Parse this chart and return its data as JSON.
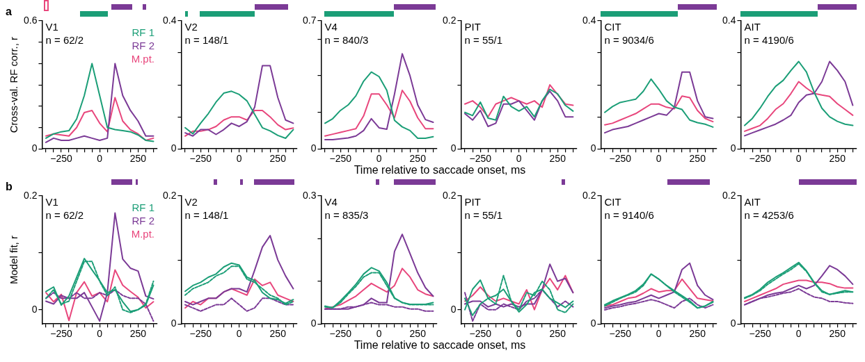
{
  "chart_data": [
    {
      "type": "line",
      "title": "V1",
      "subtitle": "n = 62/2",
      "ylabel": "Cross-val. RF corr., r",
      "annotations": [
        "a"
      ],
      "legend": "top right",
      "xlim": [
        -375,
        375
      ],
      "xticks": [
        {
          "value": -350,
          "label": null
        },
        {
          "value": -300,
          "label": null
        },
        -250,
        {
          "value": -200,
          "label": null
        },
        {
          "value": -150,
          "label": null
        },
        {
          "value": -100,
          "label": null
        },
        {
          "value": -50,
          "label": null
        },
        0,
        {
          "value": 50,
          "label": null
        },
        {
          "value": 100,
          "label": null
        },
        {
          "value": 150,
          "label": null
        },
        {
          "value": 200,
          "label": null
        },
        250,
        {
          "value": 300,
          "label": null
        },
        {
          "value": 350,
          "label": null
        }
      ],
      "ylim": [
        0,
        0.6
      ],
      "yticks": [
        0,
        {
          "value": 0.1,
          "label": null
        },
        {
          "value": 0.2,
          "label": null
        },
        {
          "value": 0.3,
          "label": null
        },
        {
          "value": 0.4,
          "label": null
        },
        {
          "value": 0.5,
          "label": null
        },
        0.6
      ],
      "x": [
        -350,
        -300,
        -250,
        -200,
        -150,
        -100,
        -50,
        0,
        50,
        100,
        150,
        200,
        250,
        300,
        350
      ],
      "series": [
        {
          "name": "RF 1",
          "color": "#1b9e77",
          "values": [
            0.05,
            0.07,
            0.08,
            0.085,
            0.14,
            0.25,
            0.4,
            0.25,
            0.1,
            0.09,
            0.085,
            0.08,
            0.065,
            0.04,
            0.035
          ]
        },
        {
          "name": "RF 2",
          "color": "#7b3a96",
          "values": [
            0.03,
            0.05,
            0.04,
            0.04,
            0.05,
            0.06,
            0.05,
            0.04,
            0.05,
            0.4,
            0.25,
            0.18,
            0.13,
            0.06,
            0.06
          ]
        },
        {
          "name": "M.pt.",
          "color": "#e8467c",
          "values": [
            0.06,
            0.07,
            0.065,
            0.06,
            0.1,
            0.17,
            0.18,
            0.12,
            0.08,
            0.24,
            0.13,
            0.09,
            0.07,
            0.04,
            0.05
          ]
        }
      ]
    },
    {
      "type": "line",
      "title": "V2",
      "subtitle": "n = 148/1",
      "xlim": [
        -375,
        375
      ],
      "xticks": [
        {
          "value": -350,
          "label": null
        },
        {
          "value": -300,
          "label": null
        },
        -250,
        {
          "value": -200,
          "label": null
        },
        {
          "value": -150,
          "label": null
        },
        {
          "value": -100,
          "label": null
        },
        {
          "value": -50,
          "label": null
        },
        0,
        {
          "value": 50,
          "label": null
        },
        {
          "value": 100,
          "label": null
        },
        {
          "value": 150,
          "label": null
        },
        {
          "value": 200,
          "label": null
        },
        250,
        {
          "value": 300,
          "label": null
        },
        {
          "value": 350,
          "label": null
        }
      ],
      "ylim": [
        0,
        0.4
      ],
      "yticks": [
        0,
        {
          "value": 0.1,
          "label": null
        },
        {
          "value": 0.2,
          "label": null
        },
        {
          "value": 0.3,
          "label": null
        },
        0.4
      ],
      "x": [
        -350,
        -300,
        -250,
        -200,
        -150,
        -100,
        -50,
        0,
        50,
        100,
        150,
        200,
        250,
        300,
        350
      ],
      "series": [
        {
          "color": "#1b9e77",
          "values": [
            0.066,
            0.047,
            0.08,
            0.11,
            0.146,
            0.174,
            0.18,
            0.17,
            0.15,
            0.108,
            0.066,
            0.056,
            0.042,
            0.033,
            0.06
          ]
        },
        {
          "color": "#7b3a96",
          "values": [
            0.05,
            0.04,
            0.06,
            0.06,
            0.045,
            0.06,
            0.08,
            0.07,
            0.085,
            0.13,
            0.26,
            0.26,
            0.16,
            0.09,
            0.08
          ]
        },
        {
          "color": "#e8467c",
          "values": [
            0.04,
            0.055,
            0.055,
            0.06,
            0.07,
            0.09,
            0.1,
            0.1,
            0.09,
            0.12,
            0.12,
            0.1,
            0.075,
            0.06,
            0.065
          ]
        }
      ]
    },
    {
      "type": "line",
      "title": "V4",
      "subtitle": "n = 840/3",
      "xlim": [
        -375,
        375
      ],
      "xticks": [
        {
          "value": -350,
          "label": null
        },
        {
          "value": -300,
          "label": null
        },
        -250,
        {
          "value": -200,
          "label": null
        },
        {
          "value": -150,
          "label": null
        },
        {
          "value": -100,
          "label": null
        },
        {
          "value": -50,
          "label": null
        },
        0,
        {
          "value": 50,
          "label": null
        },
        {
          "value": 100,
          "label": null
        },
        {
          "value": 150,
          "label": null
        },
        {
          "value": 200,
          "label": null
        },
        250,
        {
          "value": 300,
          "label": null
        },
        {
          "value": 350,
          "label": null
        }
      ],
      "ylim": [
        0,
        0.7
      ],
      "yticks": [
        0,
        {
          "value": 0.2,
          "label": null
        },
        {
          "value": 0.4,
          "label": null
        },
        {
          "value": 0.6,
          "label": null
        },
        0.7
      ],
      "x": [
        -350,
        -300,
        -250,
        -200,
        -150,
        -100,
        -50,
        0,
        50,
        100,
        150,
        200,
        250,
        300,
        350
      ],
      "series": [
        {
          "color": "#1b9e77",
          "values": [
            0.14,
            0.165,
            0.21,
            0.24,
            0.29,
            0.37,
            0.42,
            0.395,
            0.32,
            0.156,
            0.12,
            0.1,
            0.058,
            0.058,
            0.066
          ]
        },
        {
          "color": "#7b3a96",
          "values": [
            0.05,
            0.05,
            0.055,
            0.06,
            0.07,
            0.1,
            0.165,
            0.115,
            0.107,
            0.3,
            0.52,
            0.4,
            0.24,
            0.16,
            0.145
          ]
        },
        {
          "color": "#e8467c",
          "values": [
            0.07,
            0.08,
            0.09,
            0.1,
            0.11,
            0.18,
            0.3,
            0.3,
            0.24,
            0.17,
            0.32,
            0.26,
            0.17,
            0.11,
            0.11
          ]
        }
      ]
    },
    {
      "type": "line",
      "title": "PIT",
      "subtitle": "n = 55/1",
      "xlabel": "Time relative to saccade onset, ms",
      "xlim": [
        -375,
        375
      ],
      "xticks": [
        {
          "value": -350,
          "label": null
        },
        {
          "value": -300,
          "label": null
        },
        -250,
        {
          "value": -200,
          "label": null
        },
        {
          "value": -150,
          "label": null
        },
        {
          "value": -100,
          "label": null
        },
        {
          "value": -50,
          "label": null
        },
        0,
        {
          "value": 50,
          "label": null
        },
        {
          "value": 100,
          "label": null
        },
        {
          "value": 150,
          "label": null
        },
        {
          "value": 200,
          "label": null
        },
        250,
        {
          "value": 300,
          "label": null
        },
        {
          "value": 350,
          "label": null
        }
      ],
      "ylim": [
        0,
        0.2
      ],
      "yticks": [
        0,
        {
          "value": 0.1,
          "label": null
        },
        0.2
      ],
      "x": [
        -350,
        -300,
        -250,
        -200,
        -150,
        -100,
        -50,
        0,
        50,
        100,
        150,
        200,
        250,
        300,
        350
      ],
      "series": [
        {
          "color": "#1b9e77",
          "values": [
            0.057,
            0.052,
            0.073,
            0.048,
            0.045,
            0.082,
            0.066,
            0.059,
            0.066,
            0.05,
            0.075,
            0.093,
            0.086,
            0.068,
            0.059
          ]
        },
        {
          "color": "#7b3a96",
          "values": [
            0.055,
            0.045,
            0.06,
            0.035,
            0.04,
            0.07,
            0.07,
            0.075,
            0.06,
            0.045,
            0.075,
            0.09,
            0.075,
            0.05,
            0.05
          ]
        },
        {
          "color": "#e8467c",
          "values": [
            0.07,
            0.075,
            0.065,
            0.05,
            0.07,
            0.075,
            0.08,
            0.075,
            0.07,
            0.075,
            0.065,
            0.1,
            0.085,
            0.07,
            0.068
          ]
        }
      ]
    },
    {
      "type": "line",
      "title": "CIT",
      "subtitle": "n = 9034/6",
      "xlim": [
        -375,
        375
      ],
      "xticks": [
        {
          "value": -350,
          "label": null
        },
        {
          "value": -300,
          "label": null
        },
        -250,
        {
          "value": -200,
          "label": null
        },
        {
          "value": -150,
          "label": null
        },
        {
          "value": -100,
          "label": null
        },
        {
          "value": -50,
          "label": null
        },
        0,
        {
          "value": 50,
          "label": null
        },
        {
          "value": 100,
          "label": null
        },
        {
          "value": 150,
          "label": null
        },
        {
          "value": 200,
          "label": null
        },
        250,
        {
          "value": 300,
          "label": null
        },
        {
          "value": 350,
          "label": null
        }
      ],
      "ylim": [
        0,
        0.4
      ],
      "yticks": [
        0,
        {
          "value": 0.1,
          "label": null
        },
        {
          "value": 0.2,
          "label": null
        },
        {
          "value": 0.3,
          "label": null
        },
        0.4
      ],
      "x": [
        -350,
        -300,
        -250,
        -200,
        -150,
        -100,
        -50,
        0,
        50,
        100,
        150,
        200,
        250,
        300,
        350
      ],
      "series": [
        {
          "color": "#1b9e77",
          "values": [
            0.114,
            0.132,
            0.145,
            0.15,
            0.155,
            0.18,
            0.218,
            0.186,
            0.15,
            0.13,
            0.123,
            0.09,
            0.082,
            0.077,
            0.068
          ]
        },
        {
          "color": "#7b3a96",
          "values": [
            0.05,
            0.06,
            0.065,
            0.07,
            0.08,
            0.09,
            0.1,
            0.11,
            0.105,
            0.13,
            0.24,
            0.24,
            0.15,
            0.1,
            0.095
          ]
        },
        {
          "color": "#e8467c",
          "values": [
            0.075,
            0.08,
            0.09,
            0.1,
            0.11,
            0.125,
            0.14,
            0.14,
            0.13,
            0.125,
            0.165,
            0.16,
            0.12,
            0.095,
            0.085
          ]
        }
      ]
    },
    {
      "type": "line",
      "title": "AIT",
      "subtitle": "n = 4190/6",
      "xlim": [
        -375,
        375
      ],
      "xticks": [
        {
          "value": -350,
          "label": null
        },
        {
          "value": -300,
          "label": null
        },
        -250,
        {
          "value": -200,
          "label": null
        },
        {
          "value": -150,
          "label": null
        },
        {
          "value": -100,
          "label": null
        },
        {
          "value": -50,
          "label": null
        },
        0,
        {
          "value": 50,
          "label": null
        },
        {
          "value": 100,
          "label": null
        },
        {
          "value": 150,
          "label": null
        },
        {
          "value": 200,
          "label": null
        },
        250,
        {
          "value": 300,
          "label": null
        },
        {
          "value": 350,
          "label": null
        }
      ],
      "ylim": [
        0,
        0.4
      ],
      "yticks": [
        0,
        {
          "value": 0.1,
          "label": null
        },
        {
          "value": 0.2,
          "label": null
        },
        {
          "value": 0.3,
          "label": null
        },
        0.4
      ],
      "x": [
        -350,
        -300,
        -250,
        -200,
        -150,
        -100,
        -50,
        0,
        50,
        100,
        150,
        200,
        250,
        300,
        350
      ],
      "series": [
        {
          "color": "#1b9e77",
          "values": [
            0.073,
            0.095,
            0.127,
            0.164,
            0.195,
            0.214,
            0.245,
            0.273,
            0.24,
            0.177,
            0.127,
            0.1,
            0.086,
            0.077,
            0.073
          ]
        },
        {
          "color": "#7b3a96",
          "values": [
            0.041,
            0.05,
            0.059,
            0.068,
            0.077,
            0.09,
            0.105,
            0.145,
            0.168,
            0.173,
            0.21,
            0.273,
            0.245,
            0.21,
            0.136
          ]
        },
        {
          "color": "#e8467c",
          "values": [
            0.055,
            0.064,
            0.073,
            0.095,
            0.123,
            0.141,
            0.173,
            0.21,
            0.19,
            0.173,
            0.168,
            0.164,
            0.141,
            0.123,
            0.105
          ]
        }
      ]
    },
    {
      "type": "line",
      "title": "V1",
      "subtitle": "n = 62/2",
      "ylabel": "Model fit, r",
      "annotations": [
        "b"
      ],
      "legend": "top right",
      "xlim": [
        -375,
        375
      ],
      "xticks": [
        {
          "value": -350,
          "label": null
        },
        {
          "value": -300,
          "label": null
        },
        -250,
        {
          "value": -200,
          "label": null
        },
        {
          "value": -150,
          "label": null
        },
        {
          "value": -100,
          "label": null
        },
        {
          "value": -50,
          "label": null
        },
        0,
        {
          "value": 50,
          "label": null
        },
        {
          "value": 100,
          "label": null
        },
        {
          "value": 150,
          "label": null
        },
        {
          "value": 200,
          "label": null
        },
        250,
        {
          "value": 300,
          "label": null
        },
        {
          "value": 350,
          "label": null
        }
      ],
      "ylim": [
        -0.025,
        0.2
      ],
      "yticks": [
        0,
        {
          "value": 0.1,
          "label": null
        },
        0.2
      ],
      "x": [
        -350,
        -300,
        -250,
        -200,
        -150,
        -100,
        -50,
        0,
        50,
        100,
        150,
        200,
        250,
        300,
        350
      ],
      "series": [
        {
          "name": "RF 1",
          "color": "#1b9e77",
          "values": [
            0.032,
            0.04,
            0.008,
            0.024,
            0.057,
            0.09,
            0.07,
            0.051,
            0.03,
            0.035,
            0.014,
            -0.003,
            0,
            0.008,
            0.043
          ]
        },
        {
          "color": "#1b9e77",
          "line_style": "dashed",
          "values": [
            0.02,
            0.035,
            0.01,
            0.015,
            0.05,
            0.085,
            0.085,
            0.05,
            0.025,
            0.04,
            0,
            -0.005,
            0,
            0.01,
            0.05
          ]
        },
        {
          "name": "RF 2",
          "color": "#7b3a96",
          "values": [
            0.015,
            0.01,
            0.025,
            0.02,
            0.02,
            0.03,
            0.005,
            -0.02,
            0.03,
            0.17,
            0.089,
            0.073,
            0.068,
            0.024,
            0.019
          ]
        },
        {
          "color": "#7b3a96",
          "line_style": "dashed",
          "values": [
            0.02,
            0.03,
            0.02,
            0.02,
            0.03,
            0.02,
            0.02,
            0.03,
            0.025,
            0.035,
            0.025,
            0.02,
            0.02,
            0.01,
            -0.02
          ]
        },
        {
          "name": "M.pt.",
          "color": "#e8467c",
          "values": [
            0.03,
            0.014,
            0.027,
            -0.019,
            0.03,
            0.049,
            0.024,
            0.03,
            0.014,
            0.07,
            0.043,
            0.032,
            0.022,
            0.003,
            0.014
          ]
        }
      ]
    },
    {
      "type": "line",
      "title": "V2",
      "subtitle": "n = 148/1",
      "xlim": [
        -375,
        375
      ],
      "xticks": [
        {
          "value": -350,
          "label": null
        },
        {
          "value": -300,
          "label": null
        },
        -250,
        {
          "value": -200,
          "label": null
        },
        {
          "value": -150,
          "label": null
        },
        {
          "value": -100,
          "label": null
        },
        {
          "value": -50,
          "label": null
        },
        0,
        {
          "value": 50,
          "label": null
        },
        {
          "value": 100,
          "label": null
        },
        {
          "value": 150,
          "label": null
        },
        {
          "value": 200,
          "label": null
        },
        250,
        {
          "value": 300,
          "label": null
        },
        {
          "value": 350,
          "label": null
        }
      ],
      "ylim": [
        0,
        0.2
      ],
      "yticks": [
        0,
        {
          "value": 0.1,
          "label": null
        },
        0.2
      ],
      "x": [
        -350,
        -300,
        -250,
        -200,
        -150,
        -100,
        -50,
        0,
        50,
        100,
        150,
        200,
        250,
        300,
        350
      ],
      "series": [
        {
          "color": "#1b9e77",
          "values": [
            0.051,
            0.06,
            0.065,
            0.073,
            0.078,
            0.089,
            0.095,
            0.092,
            0.073,
            0.068,
            0.049,
            0.04,
            0.038,
            0.032,
            0.038
          ]
        },
        {
          "color": "#1b9e77",
          "line_style": "dashed",
          "values": [
            0.045,
            0.055,
            0.06,
            0.065,
            0.075,
            0.08,
            0.09,
            0.09,
            0.07,
            0.065,
            0.055,
            0.045,
            0.04,
            0.03,
            0.035
          ]
        },
        {
          "color": "#7b3a96",
          "values": [
            0.035,
            0.03,
            0.035,
            0.04,
            0.04,
            0.05,
            0.055,
            0.055,
            0.05,
            0.084,
            0.12,
            0.138,
            0.1,
            0.075,
            0.055
          ]
        },
        {
          "color": "#7b3a96",
          "line_style": "dashed",
          "values": [
            0.03,
            0.025,
            0.02,
            0.025,
            0.03,
            0.03,
            0.04,
            0.03,
            0.02,
            0.025,
            0.04,
            0.04,
            0.035,
            0.03,
            0.03
          ]
        },
        {
          "color": "#e8467c",
          "values": [
            0.025,
            0.035,
            0.03,
            0.04,
            0.04,
            0.05,
            0.055,
            0.05,
            0.045,
            0.07,
            0.06,
            0.065,
            0.045,
            0.04,
            0.035
          ]
        }
      ]
    },
    {
      "type": "line",
      "title": "V4",
      "subtitle": "n = 835/3",
      "xlim": [
        -375,
        375
      ],
      "xticks": [
        {
          "value": -350,
          "label": null
        },
        {
          "value": -300,
          "label": null
        },
        -250,
        {
          "value": -200,
          "label": null
        },
        {
          "value": -150,
          "label": null
        },
        {
          "value": -100,
          "label": null
        },
        {
          "value": -50,
          "label": null
        },
        0,
        {
          "value": 50,
          "label": null
        },
        {
          "value": 100,
          "label": null
        },
        {
          "value": 150,
          "label": null
        },
        {
          "value": 200,
          "label": null
        },
        250,
        {
          "value": 300,
          "label": null
        },
        {
          "value": 350,
          "label": null
        }
      ],
      "ylim": [
        0,
        0.3
      ],
      "yticks": [
        0,
        {
          "value": 0.1,
          "label": null
        },
        {
          "value": 0.2,
          "label": null
        },
        0.3
      ],
      "x": [
        -350,
        -300,
        -250,
        -200,
        -150,
        -100,
        -50,
        0,
        50,
        100,
        150,
        200,
        250,
        300,
        350
      ],
      "series": [
        {
          "color": "#1b9e77",
          "values": [
            0.042,
            0.038,
            0.054,
            0.073,
            0.093,
            0.117,
            0.132,
            0.124,
            0.097,
            0.061,
            0.05,
            0.046,
            0.046,
            0.046,
            0.05
          ]
        },
        {
          "color": "#1b9e77",
          "line_style": "dashed",
          "values": [
            0.04,
            0.038,
            0.05,
            0.07,
            0.088,
            0.11,
            0.12,
            0.12,
            0.09,
            0.06,
            0.05,
            0.045,
            0.045,
            0.045,
            0.045
          ]
        },
        {
          "color": "#7b3a96",
          "values": [
            0.035,
            0.035,
            0.035,
            0.035,
            0.04,
            0.045,
            0.06,
            0.05,
            0.05,
            0.17,
            0.21,
            0.165,
            0.12,
            0.085,
            0.065
          ]
        },
        {
          "color": "#7b3a96",
          "line_style": "dashed",
          "values": [
            0.035,
            0.035,
            0.035,
            0.04,
            0.04,
            0.045,
            0.05,
            0.045,
            0.045,
            0.04,
            0.04,
            0.035,
            0.035,
            0.03,
            0.03
          ]
        },
        {
          "color": "#e8467c",
          "values": [
            0.035,
            0.04,
            0.045,
            0.055,
            0.065,
            0.08,
            0.095,
            0.085,
            0.075,
            0.09,
            0.13,
            0.11,
            0.08,
            0.07,
            0.065
          ]
        }
      ]
    },
    {
      "type": "line",
      "title": "PIT",
      "subtitle": "n = 55/1",
      "xlabel": "Time relative to saccade onset, ms",
      "xlim": [
        -375,
        375
      ],
      "xticks": [
        {
          "value": -350,
          "label": null
        },
        {
          "value": -300,
          "label": null
        },
        -250,
        {
          "value": -200,
          "label": null
        },
        {
          "value": -150,
          "label": null
        },
        {
          "value": -100,
          "label": null
        },
        {
          "value": -50,
          "label": null
        },
        0,
        {
          "value": 50,
          "label": null
        },
        {
          "value": 100,
          "label": null
        },
        {
          "value": 150,
          "label": null
        },
        {
          "value": 200,
          "label": null
        },
        250,
        {
          "value": 300,
          "label": null
        },
        {
          "value": 350,
          "label": null
        }
      ],
      "ylim": [
        -0.025,
        0.2
      ],
      "yticks": [
        0,
        {
          "value": 0.1,
          "label": null
        },
        0.2
      ],
      "x": [
        -350,
        -300,
        -250,
        -200,
        -150,
        -100,
        -50,
        0,
        50,
        100,
        150,
        200,
        250,
        300,
        350
      ],
      "series": [
        {
          "color": "#1b9e77",
          "values": [
            0,
            0.036,
            0.052,
            0.02,
            0.025,
            0.036,
            0.015,
            -0.004,
            0.009,
            0.03,
            0.036,
            0.02,
            0.012,
            0.004,
            0.015
          ]
        },
        {
          "color": "#1b9e77",
          "line_style": "dashed",
          "values": [
            0.02,
            -0.01,
            0.01,
            0.02,
            0.01,
            0.06,
            0.015,
            0,
            0.03,
            0.025,
            0.05,
            0.035,
            0,
            -0.005,
            0.01
          ]
        },
        {
          "color": "#7b3a96",
          "values": [
            0.01,
            0.015,
            0.015,
            0.005,
            0.01,
            0.005,
            0.01,
            0.005,
            0.01,
            0.01,
            0.035,
            0.08,
            0.05,
            0.055,
            0.03
          ]
        },
        {
          "color": "#7b3a96",
          "line_style": "dashed",
          "values": [
            0.03,
            -0.02,
            0.01,
            0,
            0,
            0.01,
            0.005,
            0,
            0.015,
            0.02,
            0.035,
            0.02,
            0.005,
            0.015,
            0.005
          ]
        },
        {
          "color": "#e8467c",
          "values": [
            0.015,
            0.025,
            0.04,
            0.025,
            0.015,
            0.02,
            0.015,
            0.01,
            0.035,
            0,
            0.035,
            0.055,
            0.035,
            0.06,
            0.03
          ]
        }
      ]
    },
    {
      "type": "line",
      "title": "CIT",
      "subtitle": "n = 9140/6",
      "xlim": [
        -375,
        375
      ],
      "xticks": [
        {
          "value": -350,
          "label": null
        },
        {
          "value": -300,
          "label": null
        },
        -250,
        {
          "value": -200,
          "label": null
        },
        {
          "value": -150,
          "label": null
        },
        {
          "value": -100,
          "label": null
        },
        {
          "value": -50,
          "label": null
        },
        0,
        {
          "value": 50,
          "label": null
        },
        {
          "value": 100,
          "label": null
        },
        {
          "value": 150,
          "label": null
        },
        {
          "value": 200,
          "label": null
        },
        250,
        {
          "value": 300,
          "label": null
        },
        {
          "value": 350,
          "label": null
        }
      ],
      "ylim": [
        0,
        0.2
      ],
      "yticks": [
        0,
        {
          "value": 0.1,
          "label": null
        },
        0.2
      ],
      "x": [
        -350,
        -300,
        -250,
        -200,
        -150,
        -100,
        -50,
        0,
        50,
        100,
        150,
        200,
        250,
        300,
        350
      ],
      "series": [
        {
          "color": "#1b9e77",
          "values": [
            0.03,
            0.036,
            0.041,
            0.046,
            0.052,
            0.062,
            0.078,
            0.07,
            0.06,
            0.052,
            0.044,
            0.036,
            0.025,
            0.028,
            0.035
          ]
        },
        {
          "color": "#1b9e77",
          "line_style": "dashed",
          "values": [
            0.028,
            0.034,
            0.04,
            0.045,
            0.05,
            0.06,
            0.078,
            0.07,
            0.06,
            0.05,
            0.042,
            0.034,
            0.025,
            0.028,
            0.034
          ]
        },
        {
          "color": "#7b3a96",
          "values": [
            0.025,
            0.028,
            0.03,
            0.033,
            0.035,
            0.04,
            0.045,
            0.04,
            0.045,
            0.05,
            0.085,
            0.095,
            0.06,
            0.045,
            0.038
          ]
        },
        {
          "color": "#7b3a96",
          "line_style": "dashed",
          "values": [
            0.022,
            0.025,
            0.027,
            0.03,
            0.032,
            0.035,
            0.038,
            0.035,
            0.03,
            0.025,
            0.035,
            0.04,
            0.03,
            0.025,
            0.03
          ]
        },
        {
          "color": "#e8467c",
          "values": [
            0.028,
            0.03,
            0.035,
            0.04,
            0.042,
            0.048,
            0.055,
            0.05,
            0.052,
            0.052,
            0.07,
            0.055,
            0.04,
            0.038,
            0.036
          ]
        }
      ]
    },
    {
      "type": "line",
      "title": "AIT",
      "subtitle": "n = 4253/6",
      "xlim": [
        -375,
        375
      ],
      "xticks": [
        {
          "value": -350,
          "label": null
        },
        {
          "value": -300,
          "label": null
        },
        -250,
        {
          "value": -200,
          "label": null
        },
        {
          "value": -150,
          "label": null
        },
        {
          "value": -100,
          "label": null
        },
        {
          "value": -50,
          "label": null
        },
        0,
        {
          "value": 50,
          "label": null
        },
        {
          "value": 100,
          "label": null
        },
        {
          "value": 150,
          "label": null
        },
        {
          "value": 200,
          "label": null
        },
        250,
        {
          "value": 300,
          "label": null
        },
        {
          "value": 350,
          "label": null
        }
      ],
      "ylim": [
        0,
        0.2
      ],
      "yticks": [
        0,
        {
          "value": 0.1,
          "label": null
        },
        0.2
      ],
      "x": [
        -350,
        -300,
        -250,
        -200,
        -150,
        -100,
        -50,
        0,
        50,
        100,
        150,
        200,
        250,
        300,
        350
      ],
      "series": [
        {
          "color": "#1b9e77",
          "values": [
            0.041,
            0.046,
            0.054,
            0.065,
            0.073,
            0.08,
            0.088,
            0.096,
            0.083,
            0.065,
            0.052,
            0.046,
            0.049,
            0.052,
            0.05
          ]
        },
        {
          "color": "#1b9e77",
          "line_style": "dashed",
          "values": [
            0.04,
            0.045,
            0.052,
            0.062,
            0.07,
            0.078,
            0.085,
            0.094,
            0.082,
            0.064,
            0.05,
            0.046,
            0.048,
            0.05,
            0.05
          ]
        },
        {
          "color": "#7b3a96",
          "values": [
            0.03,
            0.035,
            0.04,
            0.045,
            0.048,
            0.05,
            0.055,
            0.06,
            0.055,
            0.06,
            0.075,
            0.091,
            0.085,
            0.075,
            0.062
          ]
        },
        {
          "color": "#7b3a96",
          "line_style": "dashed",
          "values": [
            0.03,
            0.035,
            0.04,
            0.042,
            0.045,
            0.048,
            0.05,
            0.055,
            0.048,
            0.042,
            0.04,
            0.035,
            0.035,
            0.033,
            0.032
          ]
        },
        {
          "color": "#e8467c",
          "values": [
            0.035,
            0.04,
            0.045,
            0.05,
            0.055,
            0.062,
            0.065,
            0.068,
            0.068,
            0.065,
            0.065,
            0.063,
            0.058,
            0.056,
            0.056
          ]
        }
      ]
    }
  ]
}
